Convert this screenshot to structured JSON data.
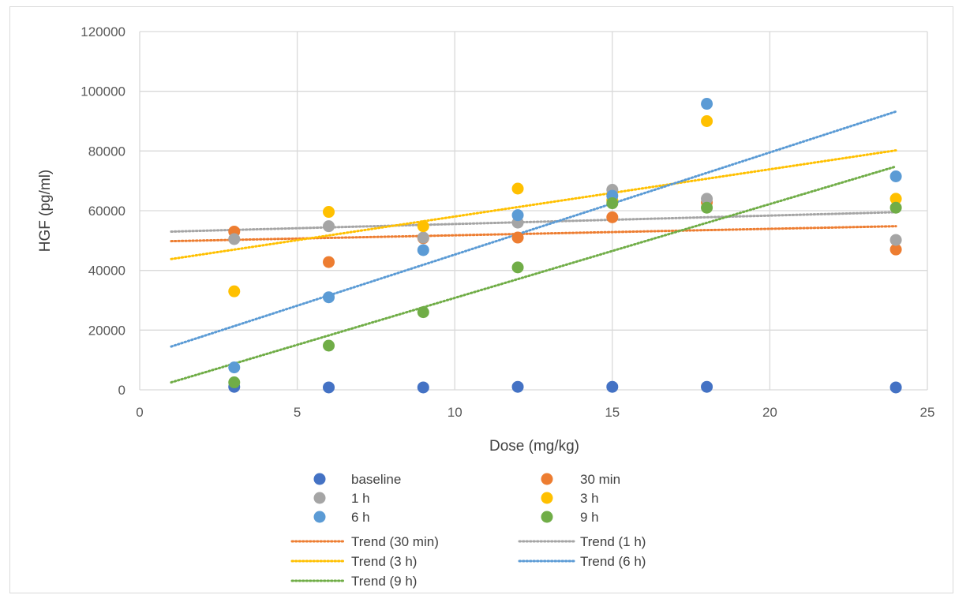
{
  "chart_data": {
    "type": "scatter",
    "title": "",
    "xlabel": "Dose (mg/kg)",
    "ylabel": "HGF (pg/ml)",
    "xlim": [
      0,
      25
    ],
    "ylim": [
      0,
      120000
    ],
    "xticks": [
      0,
      5,
      10,
      15,
      20,
      25
    ],
    "yticks": [
      0,
      20000,
      40000,
      60000,
      80000,
      100000,
      120000
    ],
    "xtick_labels": [
      "0",
      "5",
      "10",
      "15",
      "20",
      "25"
    ],
    "ytick_labels": [
      "0",
      "20000",
      "40000",
      "60000",
      "80000",
      "100000",
      "120000"
    ],
    "grid": true,
    "legend_position": "bottom",
    "x": [
      3,
      6,
      9,
      12,
      15,
      18,
      24
    ],
    "series": [
      {
        "name": "baseline",
        "color": "#4472C4",
        "values": [
          1000,
          800,
          800,
          1000,
          1000,
          1000,
          800
        ]
      },
      {
        "name": "30 min",
        "color": "#ED7D31",
        "values": [
          53000,
          42800,
          50800,
          51000,
          57800,
          62800,
          47000
        ]
      },
      {
        "name": "1 h",
        "color": "#A5A5A5",
        "values": [
          50500,
          54800,
          51000,
          56000,
          67000,
          64000,
          50200
        ]
      },
      {
        "name": "3 h",
        "color": "#FFC000",
        "values": [
          33000,
          59600,
          54800,
          67400,
          63500,
          90000,
          64000
        ]
      },
      {
        "name": "6 h",
        "color": "#5B9BD5",
        "values": [
          7500,
          31000,
          46800,
          58500,
          65000,
          95800,
          71500
        ]
      },
      {
        "name": "9 h",
        "color": "#70AD47",
        "values": [
          2500,
          14800,
          26000,
          41000,
          62500,
          61000,
          61000
        ]
      }
    ],
    "trendlines": [
      {
        "name": "Trend (30 min)",
        "color": "#ED7D31",
        "x": [
          1,
          24
        ],
        "y": [
          49800,
          54800
        ]
      },
      {
        "name": "Trend (1 h)",
        "color": "#A5A5A5",
        "x": [
          1,
          24
        ],
        "y": [
          53000,
          59500
        ]
      },
      {
        "name": "Trend (3 h)",
        "color": "#FFC000",
        "x": [
          1,
          24
        ],
        "y": [
          43800,
          80200
        ]
      },
      {
        "name": "Trend (6 h)",
        "color": "#5B9BD5",
        "x": [
          1,
          24
        ],
        "y": [
          14500,
          93200
        ]
      },
      {
        "name": "Trend (9 h)",
        "color": "#70AD47",
        "x": [
          1,
          24
        ],
        "y": [
          2500,
          74800
        ]
      }
    ]
  }
}
